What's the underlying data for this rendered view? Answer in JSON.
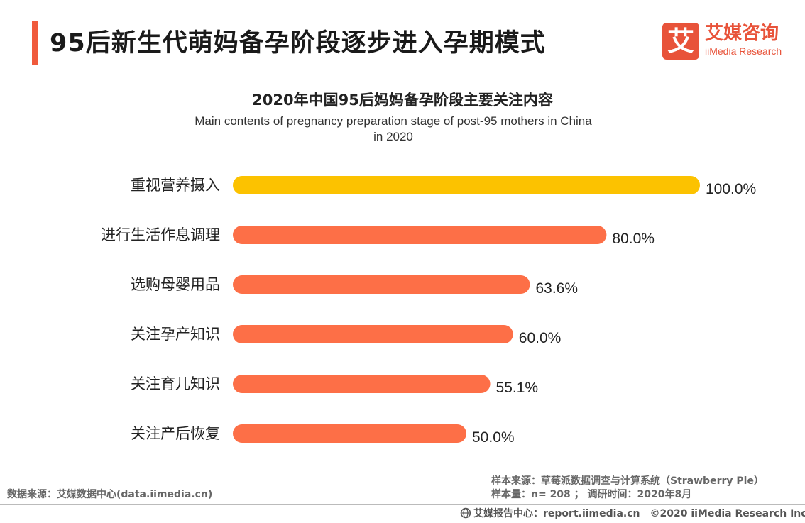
{
  "header": {
    "title": "95后新生代萌妈备孕阶段逐步进入孕期模式",
    "logo_mark": "艾",
    "logo_cn": "艾媒咨询",
    "logo_en": "iiMedia Research"
  },
  "chart_data": {
    "type": "bar",
    "orientation": "horizontal",
    "title": "2020年中国95后妈妈备孕阶段主要关注内容",
    "subtitle_line1": "Main contents of pregnancy preparation stage of post-95 mothers in China",
    "subtitle_line2": "in 2020",
    "categories": [
      "重视营养摄入",
      "进行生活作息调理",
      "选购母婴用品",
      "关注孕产知识",
      "关注育儿知识",
      "关注产后恢复"
    ],
    "values": [
      100.0,
      80.0,
      63.6,
      60.0,
      55.1,
      50.0
    ],
    "value_labels": [
      "100.0%",
      "80.0%",
      "63.6%",
      "60.0%",
      "55.1%",
      "50.0%"
    ],
    "xlim": [
      0,
      100
    ],
    "unit": "%",
    "highlight_color": "#fcc200",
    "bar_color": "#fd6f47"
  },
  "sources": {
    "left": "数据来源：艾媒数据中心(data.iimedia.cn)",
    "right_line1": "样本来源：草莓派数据调查与计算系统（Strawberry Pie）",
    "right_line2": "样本量：n= 208 ； 调研时间：2020年8月"
  },
  "footer": {
    "report_center": "艾媒报告中心：report.iimedia.cn",
    "copyright": "©2020  iiMedia Research  Inc"
  }
}
